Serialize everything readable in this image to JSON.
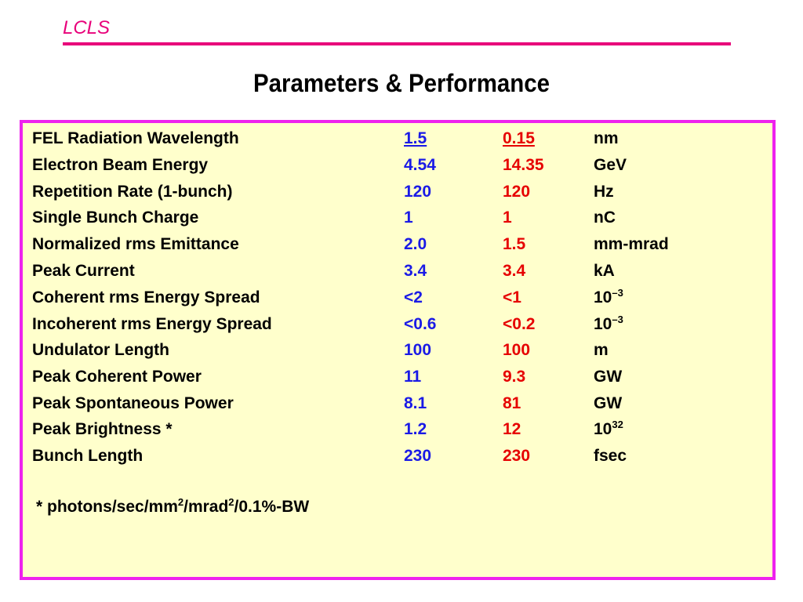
{
  "header": {
    "logo": "LCLS",
    "title": "Parameters & Performance"
  },
  "rows": [
    {
      "param": "FEL Radiation Wavelength",
      "v1": "1.5",
      "v2": "0.15",
      "unit": "nm",
      "unit_sup": ""
    },
    {
      "param": "Electron Beam Energy",
      "v1": "4.54",
      "v2": "14.35",
      "unit": "GeV",
      "unit_sup": ""
    },
    {
      "param": "Repetition Rate (1-bunch)",
      "v1": "120",
      "v2": "120",
      "unit": "Hz",
      "unit_sup": ""
    },
    {
      "param": "Single Bunch Charge",
      "v1": "1",
      "v2": "1",
      "unit": "nC",
      "unit_sup": ""
    },
    {
      "param": "Normalized rms Emittance",
      "v1": "2.0",
      "v2": "1.5",
      "unit": "mm-mrad",
      "unit_sup": ""
    },
    {
      "param": "Peak Current",
      "v1": "3.4",
      "v2": "3.4",
      "unit": "kA",
      "unit_sup": ""
    },
    {
      "param": "Coherent rms Energy Spread",
      "v1": "<2",
      "v2": "<1",
      "unit": "10",
      "unit_sup": "–3"
    },
    {
      "param": "Incoherent rms Energy Spread",
      "v1": "<0.6",
      "v2": "<0.2",
      "unit": "10",
      "unit_sup": "–3"
    },
    {
      "param": "Undulator Length",
      "v1": "100",
      "v2": "100",
      "unit": "m",
      "unit_sup": ""
    },
    {
      "param": "Peak Coherent Power",
      "v1": "11",
      "v2": "9.3",
      "unit": "GW",
      "unit_sup": ""
    },
    {
      "param": "Peak Spontaneous Power",
      "v1": "8.1",
      "v2": "81",
      "unit": "GW",
      "unit_sup": ""
    },
    {
      "param": "Peak Brightness *",
      "v1": "1.2",
      "v2": "12",
      "unit": "10",
      "unit_sup": "32"
    },
    {
      "param": "Bunch Length",
      "v1": "230",
      "v2": "230",
      "unit": "fsec",
      "unit_sup": ""
    }
  ],
  "footnote": {
    "p1": "* photons/sec/mm",
    "s1": "2",
    "p2": "/mrad",
    "s2": "2",
    "p3": "/0.1%-BW"
  },
  "colors": {
    "accent": "#e8007a",
    "border": "#ee22ee",
    "panel": "#ffffcc",
    "value1": "#1a1ae6",
    "value2": "#e60000"
  }
}
